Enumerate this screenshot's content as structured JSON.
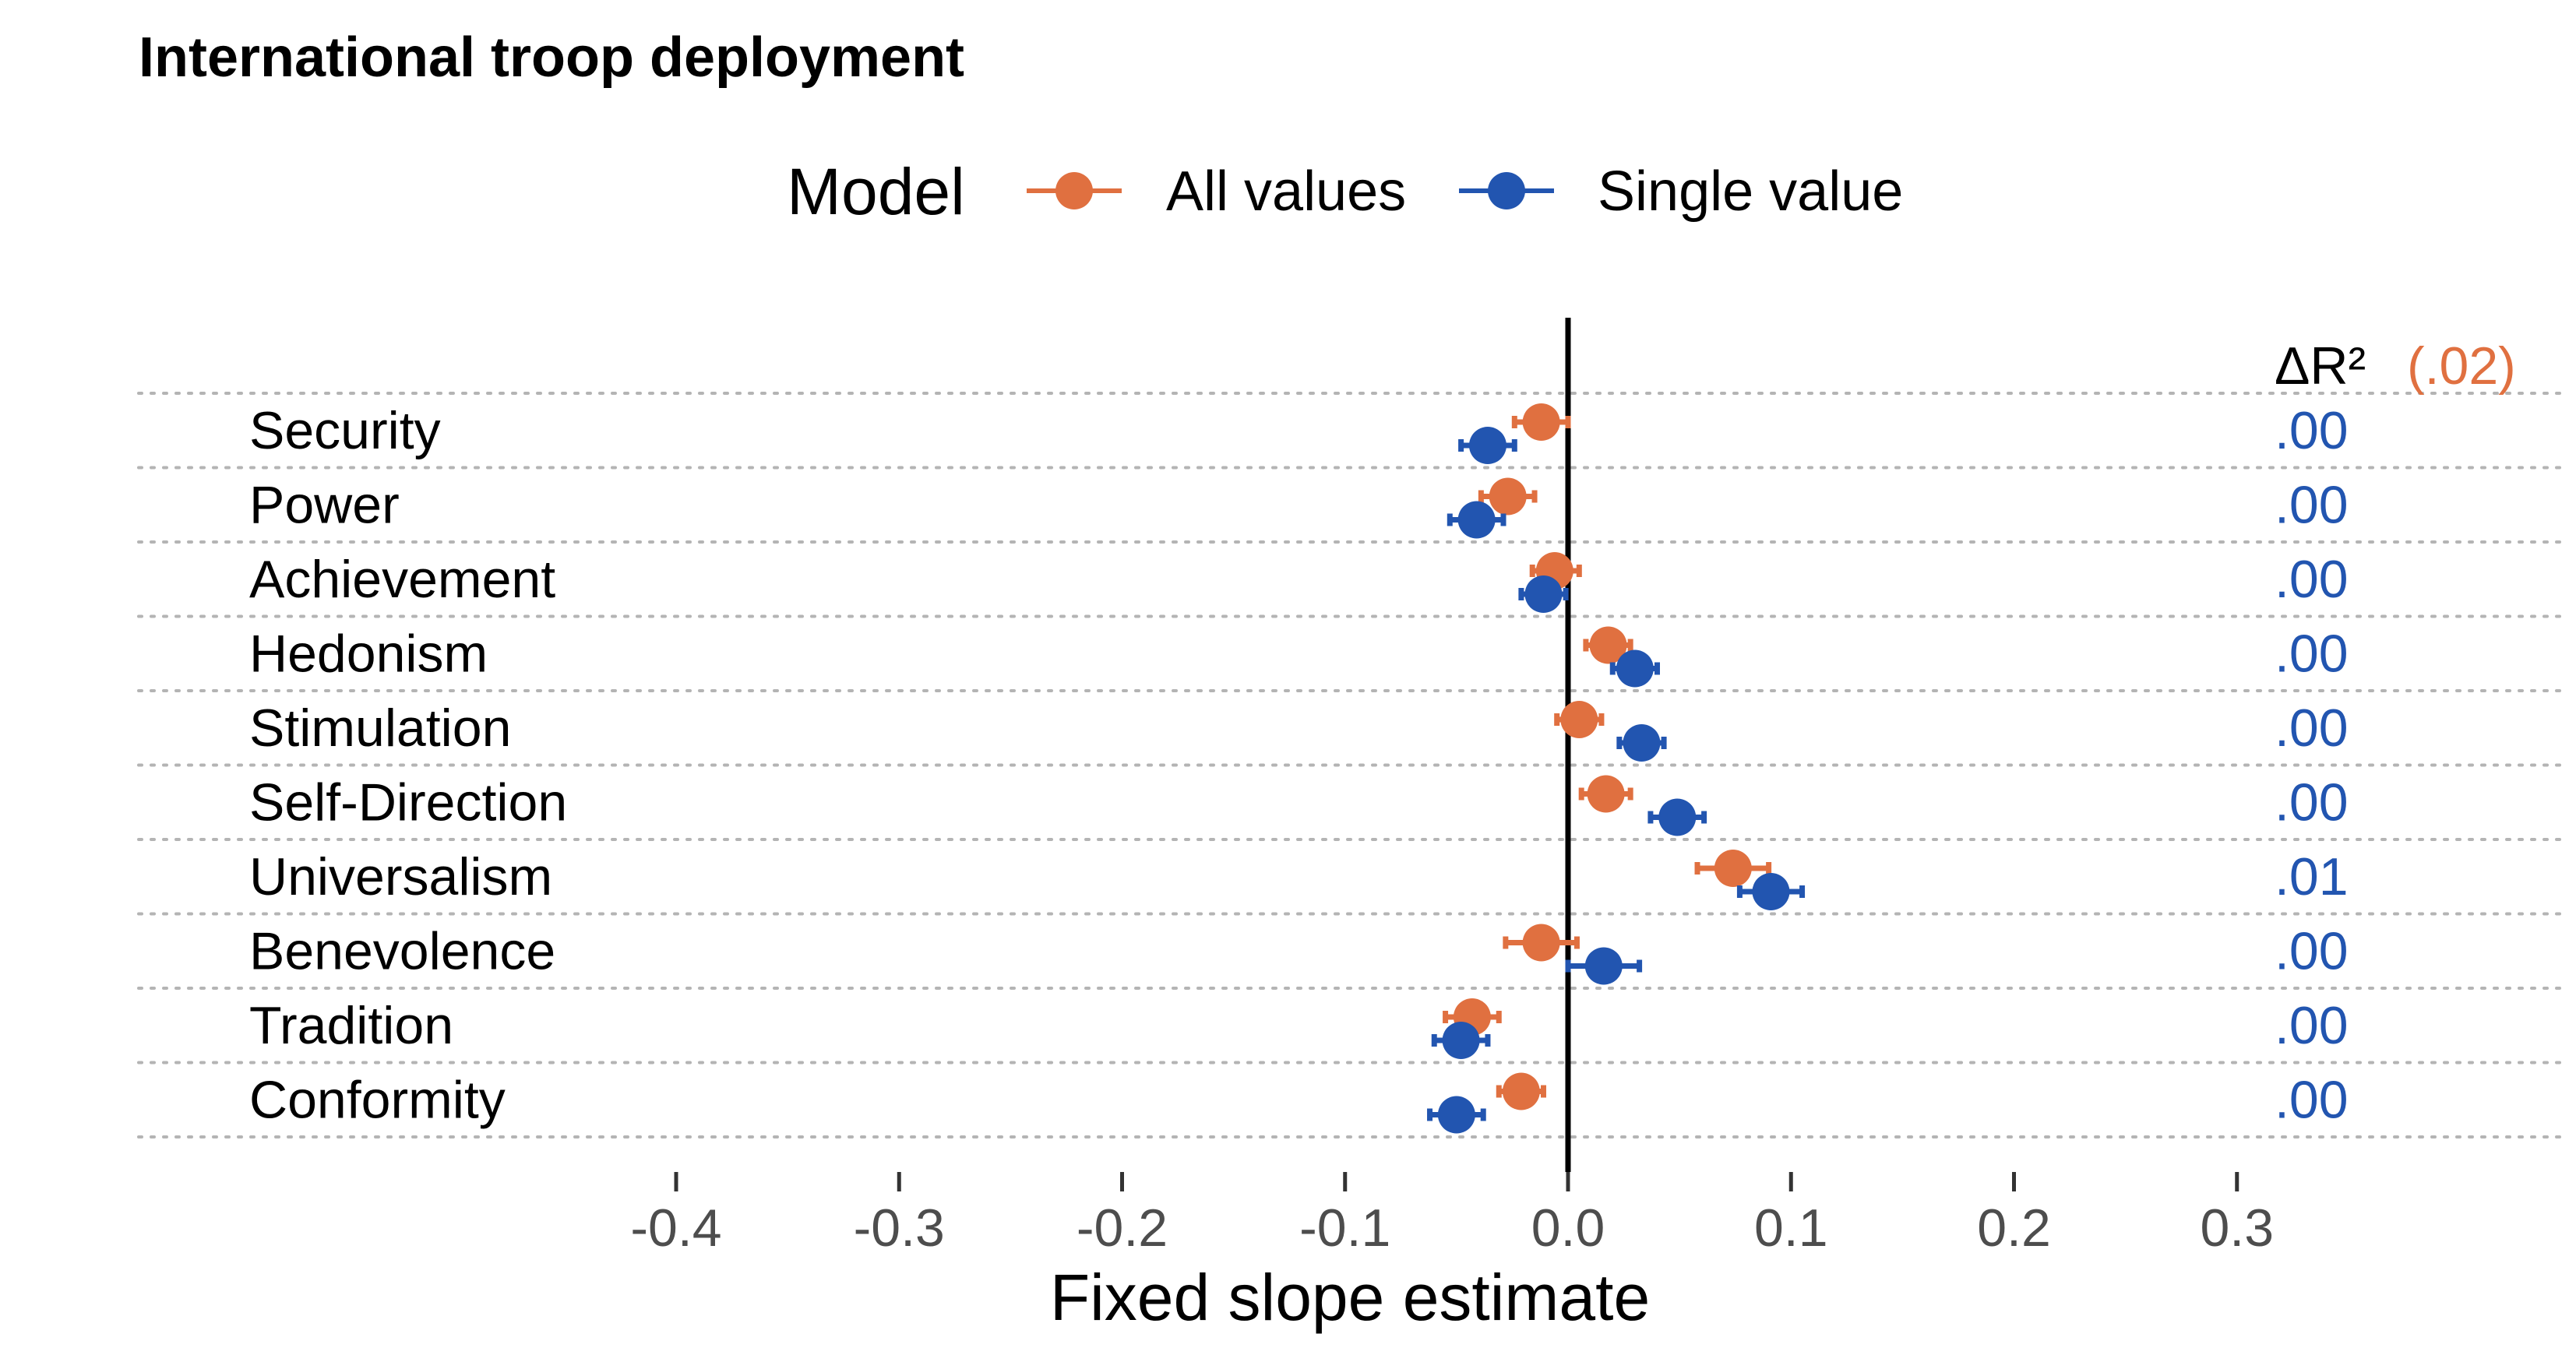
{
  "chart_data": {
    "type": "scatter",
    "subtype": "coefficient-dot-plot",
    "title": "International troop deployment",
    "xlabel": "Fixed slope estimate",
    "ylabel": "",
    "xlim": [
      -0.4,
      0.3
    ],
    "x_ticks": [
      -0.4,
      -0.3,
      -0.2,
      -0.1,
      0.0,
      0.1,
      0.2,
      0.3
    ],
    "x_tick_labels": [
      "-0.4",
      "-0.3",
      "-0.2",
      "-0.1",
      "0.0",
      "0.1",
      "0.2",
      "0.3"
    ],
    "reference_line_x": 0,
    "categories": [
      "Security",
      "Power",
      "Achievement",
      "Hedonism",
      "Stimulation",
      "Self-Direction",
      "Universalism",
      "Benevolence",
      "Tradition",
      "Conformity"
    ],
    "legend": {
      "title": "Model",
      "position": "top"
    },
    "series": [
      {
        "name": "All values",
        "color": "#E07040",
        "estimates": [
          -0.012,
          -0.027,
          -0.006,
          0.018,
          0.005,
          0.017,
          0.074,
          -0.012,
          -0.043,
          -0.021
        ],
        "ci_low": [
          -0.024,
          -0.039,
          -0.016,
          0.008,
          -0.005,
          0.006,
          0.058,
          -0.028,
          -0.055,
          -0.031
        ],
        "ci_high": [
          0.0,
          -0.015,
          0.005,
          0.028,
          0.015,
          0.028,
          0.09,
          0.004,
          -0.031,
          -0.011
        ]
      },
      {
        "name": "Single value",
        "color": "#2255B0",
        "estimates": [
          -0.036,
          -0.041,
          -0.011,
          0.03,
          0.033,
          0.049,
          0.091,
          0.016,
          -0.048,
          -0.05
        ],
        "ci_low": [
          -0.048,
          -0.053,
          -0.021,
          0.02,
          0.023,
          0.037,
          0.077,
          0.0,
          -0.06,
          -0.062
        ],
        "ci_high": [
          -0.024,
          -0.029,
          -0.001,
          0.04,
          0.043,
          0.061,
          0.105,
          0.032,
          -0.036,
          -0.038
        ]
      }
    ],
    "delta_r2": {
      "header": "ΔR²",
      "overall": "(.02)",
      "values": [
        ".00",
        ".00",
        ".00",
        ".00",
        ".00",
        ".00",
        ".01",
        ".00",
        ".00",
        ".00"
      ]
    },
    "grid": "horizontal dotted separators"
  }
}
